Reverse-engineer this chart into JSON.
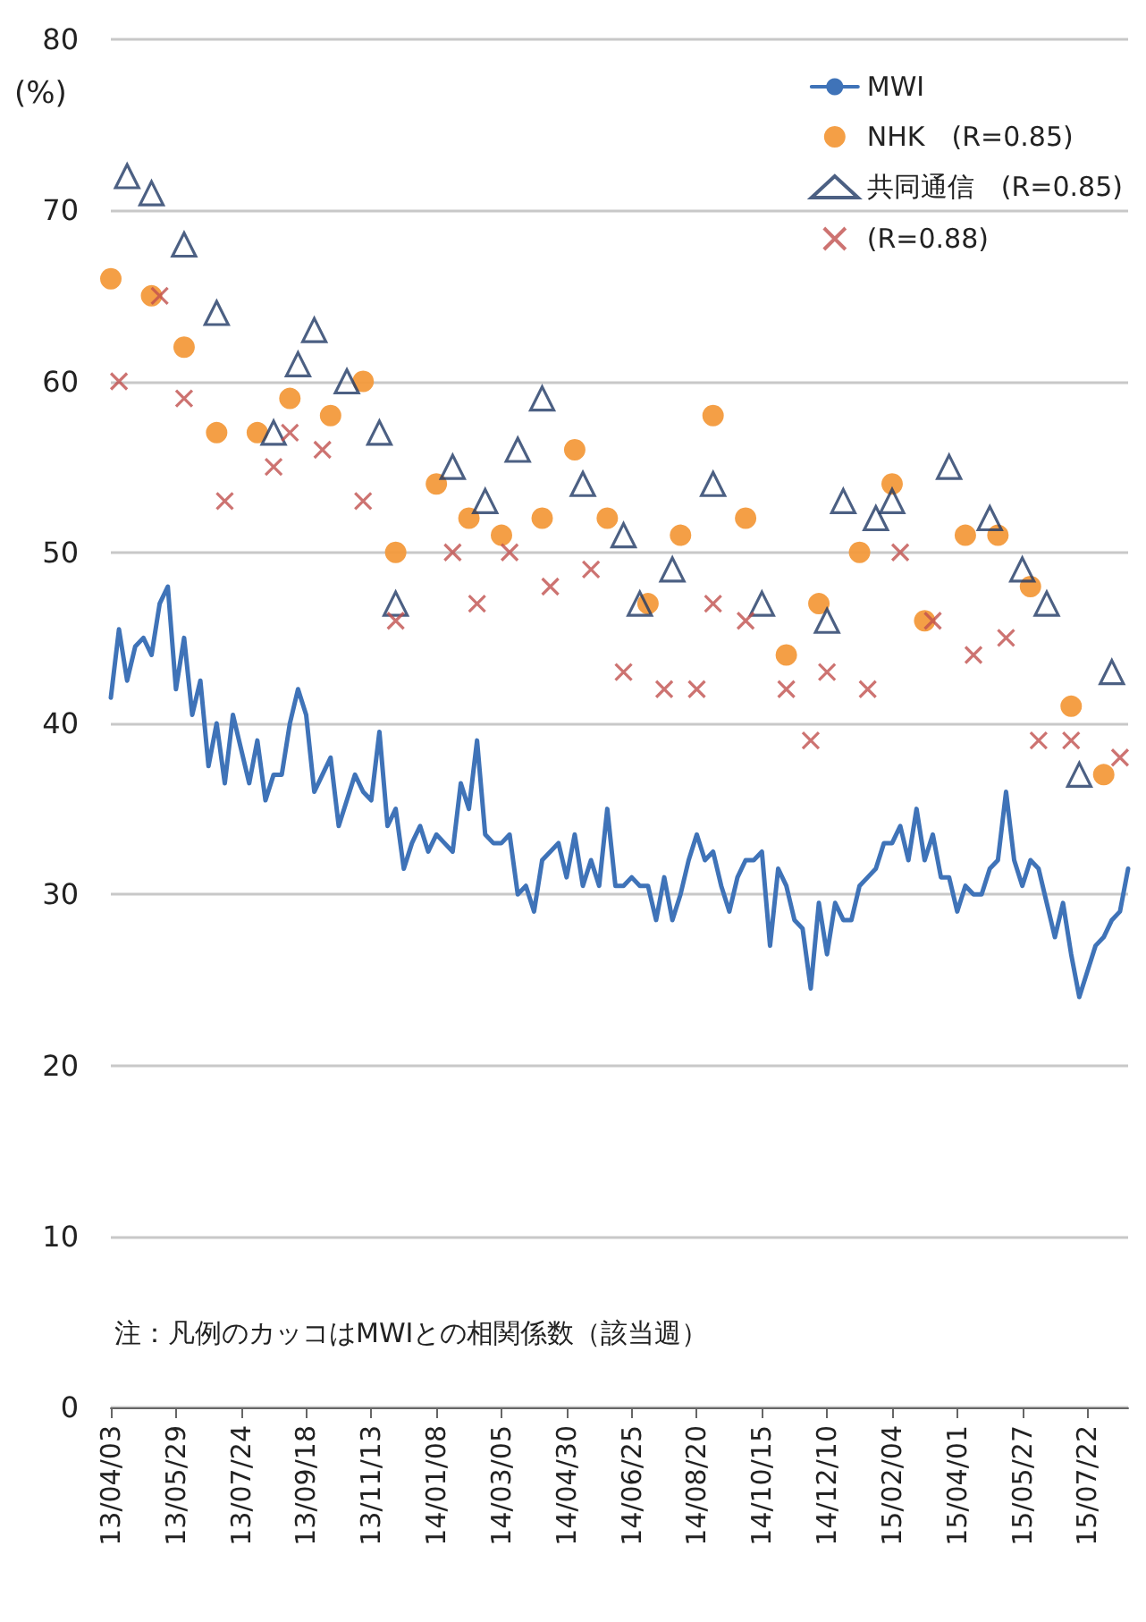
{
  "chart_data": {
    "type": "line",
    "ylabel": "(%)",
    "annotations": [
      "注：凡例のカッコはMWIとの相関係数（該当週）"
    ],
    "categories": [
      "13/04/03",
      null,
      null,
      null,
      null,
      null,
      null,
      null,
      "13/05/29",
      null,
      null,
      null,
      null,
      null,
      null,
      null,
      "13/07/24",
      null,
      null,
      null,
      null,
      null,
      null,
      null,
      "13/09/18",
      null,
      null,
      null,
      null,
      null,
      null,
      null,
      "13/11/13",
      null,
      null,
      null,
      null,
      null,
      null,
      null,
      "14/01/08",
      null,
      null,
      null,
      null,
      null,
      null,
      null,
      "14/03/05",
      null,
      null,
      null,
      null,
      null,
      null,
      null,
      "14/04/30",
      null,
      null,
      null,
      null,
      null,
      null,
      null,
      "14/06/25",
      null,
      null,
      null,
      null,
      null,
      null,
      null,
      "14/08/20",
      null,
      null,
      null,
      null,
      null,
      null,
      null,
      "14/10/15",
      null,
      null,
      null,
      null,
      null,
      null,
      null,
      "14/12/10",
      null,
      null,
      null,
      null,
      null,
      null,
      null,
      "15/02/04",
      null,
      null,
      null,
      null,
      null,
      null,
      null,
      "15/04/01",
      null,
      null,
      null,
      null,
      null,
      null,
      null,
      "15/05/27",
      null,
      null,
      null,
      null,
      null,
      null,
      null,
      "15/07/22",
      null,
      null,
      null,
      null,
      null
    ],
    "series": [
      {
        "name": "MWI",
        "type": "line",
        "marker": "none",
        "color": "#3f73b8",
        "values": [
          41.5,
          45.5,
          42.5,
          44.5,
          45,
          44,
          47,
          48,
          42,
          45,
          40.5,
          42.5,
          37.5,
          40,
          36.5,
          40.5,
          38.5,
          36.5,
          39,
          35.5,
          37,
          37,
          40,
          42,
          40.5,
          36,
          37,
          38,
          34,
          35.5,
          37,
          36,
          35.5,
          39.5,
          34,
          35,
          31.5,
          33,
          34,
          32.5,
          33.5,
          33,
          32.5,
          36.5,
          35,
          39,
          33.5,
          33,
          33,
          33.5,
          30,
          30.5,
          29,
          32,
          32.5,
          33,
          31,
          33.5,
          30.5,
          32,
          30.5,
          35,
          30.5,
          30.5,
          31,
          30.5,
          30.5,
          28.5,
          31,
          28.5,
          30,
          32,
          33.5,
          32,
          32.5,
          30.5,
          29,
          31,
          32,
          32,
          32.5,
          27,
          31.5,
          30.5,
          28.5,
          28,
          24.5,
          29.5,
          26.5,
          29.5,
          28.5,
          28.5,
          30.5,
          31,
          31.5,
          33,
          33,
          34,
          32,
          35,
          32,
          33.5,
          31,
          31,
          29,
          30.5,
          30,
          30,
          31.5,
          32,
          36,
          32,
          30.5,
          32,
          31.5,
          29.5,
          27.5,
          29.5,
          26.5,
          24,
          25.5,
          27,
          27.5,
          28.5,
          29,
          31.5
        ]
      },
      {
        "name": "NHK　(R=0.85)",
        "type": "scatter",
        "marker": "circle",
        "color": "#f39a3c",
        "values": [
          66,
          null,
          null,
          null,
          null,
          65,
          null,
          null,
          null,
          62,
          null,
          null,
          null,
          57,
          null,
          null,
          null,
          null,
          57,
          null,
          null,
          null,
          59,
          null,
          null,
          null,
          null,
          58,
          null,
          null,
          null,
          60,
          null,
          null,
          null,
          50,
          null,
          null,
          null,
          null,
          54,
          null,
          null,
          null,
          52,
          null,
          null,
          null,
          51,
          null,
          null,
          null,
          null,
          52,
          null,
          null,
          null,
          56,
          null,
          null,
          null,
          52,
          null,
          null,
          null,
          null,
          47,
          null,
          null,
          null,
          51,
          null,
          null,
          null,
          58,
          null,
          null,
          null,
          52,
          null,
          null,
          null,
          null,
          44,
          null,
          null,
          null,
          47,
          null,
          null,
          null,
          null,
          50,
          null,
          null,
          null,
          54,
          null,
          null,
          null,
          46,
          null,
          null,
          null,
          null,
          51,
          null,
          null,
          null,
          51,
          null,
          null,
          null,
          48,
          null,
          null,
          null,
          null,
          41,
          null,
          null,
          null,
          37,
          null,
          null,
          null
        ]
      },
      {
        "name": "共同通信　(R=0.85)",
        "type": "scatter",
        "marker": "triangle",
        "color": "#1f3864",
        "values": [
          null,
          null,
          72,
          null,
          null,
          71,
          null,
          null,
          null,
          68,
          null,
          null,
          null,
          64,
          null,
          null,
          null,
          null,
          null,
          null,
          57,
          null,
          null,
          61,
          null,
          63,
          null,
          null,
          null,
          60,
          null,
          null,
          null,
          57,
          null,
          47,
          null,
          null,
          null,
          null,
          null,
          null,
          55,
          null,
          null,
          null,
          53,
          null,
          null,
          null,
          56,
          null,
          null,
          59,
          null,
          null,
          null,
          null,
          54,
          null,
          null,
          null,
          null,
          51,
          null,
          47,
          null,
          null,
          null,
          49,
          null,
          null,
          null,
          null,
          54,
          null,
          null,
          null,
          null,
          null,
          47,
          null,
          null,
          null,
          null,
          null,
          null,
          null,
          46,
          null,
          53,
          null,
          null,
          null,
          52,
          null,
          53,
          null,
          null,
          null,
          null,
          null,
          null,
          55,
          null,
          null,
          null,
          null,
          52,
          null,
          null,
          null,
          49,
          null,
          null,
          47,
          null,
          null,
          null,
          37,
          null,
          null,
          null,
          43,
          null,
          null
        ]
      },
      {
        "name": "(R=0.88)",
        "type": "scatter",
        "marker": "cross",
        "color": "#c0504d",
        "values": [
          null,
          60,
          null,
          null,
          null,
          null,
          65,
          null,
          null,
          59,
          null,
          null,
          null,
          null,
          53,
          null,
          null,
          null,
          null,
          null,
          55,
          null,
          57,
          null,
          null,
          null,
          56,
          null,
          null,
          null,
          null,
          53,
          null,
          null,
          null,
          46,
          null,
          null,
          null,
          null,
          null,
          null,
          50,
          null,
          null,
          47,
          null,
          null,
          null,
          50,
          null,
          null,
          null,
          null,
          48,
          null,
          null,
          null,
          null,
          49,
          null,
          null,
          null,
          43,
          null,
          null,
          null,
          null,
          42,
          null,
          null,
          null,
          42,
          null,
          47,
          null,
          null,
          null,
          46,
          null,
          null,
          null,
          null,
          42,
          null,
          null,
          39,
          null,
          43,
          null,
          null,
          null,
          null,
          42,
          null,
          null,
          null,
          50,
          null,
          null,
          null,
          46,
          null,
          null,
          null,
          null,
          44,
          null,
          null,
          null,
          45,
          null,
          null,
          null,
          39,
          null,
          null,
          null,
          39,
          null,
          null,
          null,
          null,
          null,
          38,
          null
        ]
      }
    ],
    "ylim": [
      0,
      80
    ],
    "yticks": [
      0,
      10,
      20,
      30,
      40,
      50,
      60,
      70,
      80
    ],
    "grid": "y",
    "legend": "top right",
    "line_style": "solid"
  }
}
